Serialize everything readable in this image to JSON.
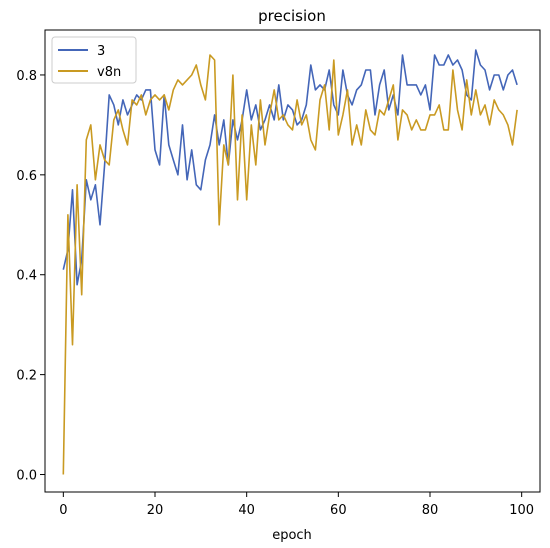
{
  "chart_data": {
    "type": "line",
    "title": "precision",
    "xlabel": "epoch",
    "ylabel": "",
    "xlim": [
      -4,
      104
    ],
    "ylim": [
      -0.035,
      0.89
    ],
    "xticks": [
      0,
      20,
      40,
      60,
      80,
      100
    ],
    "yticks": [
      0.0,
      0.2,
      0.4,
      0.6,
      0.8
    ],
    "xtick_labels": [
      "0",
      "20",
      "40",
      "60",
      "80",
      "100"
    ],
    "ytick_labels": [
      "0.0",
      "0.2",
      "0.4",
      "0.6",
      "0.8"
    ],
    "grid": false,
    "legend_position": "top-left",
    "series": [
      {
        "name": "3",
        "color": "#4466b8",
        "x": [
          0,
          1,
          2,
          3,
          4,
          5,
          6,
          7,
          8,
          9,
          10,
          11,
          12,
          13,
          14,
          15,
          16,
          17,
          18,
          19,
          20,
          21,
          22,
          23,
          24,
          25,
          26,
          27,
          28,
          29,
          30,
          31,
          32,
          33,
          34,
          35,
          36,
          37,
          38,
          39,
          40,
          41,
          42,
          43,
          44,
          45,
          46,
          47,
          48,
          49,
          50,
          51,
          52,
          53,
          54,
          55,
          56,
          57,
          58,
          59,
          60,
          61,
          62,
          63,
          64,
          65,
          66,
          67,
          68,
          69,
          70,
          71,
          72,
          73,
          74,
          75,
          76,
          77,
          78,
          79,
          80,
          81,
          82,
          83,
          84,
          85,
          86,
          87,
          88,
          89,
          90,
          91,
          92,
          93,
          94,
          95,
          96,
          97,
          98,
          99
        ],
        "values": [
          0.41,
          0.45,
          0.57,
          0.38,
          0.43,
          0.59,
          0.55,
          0.58,
          0.5,
          0.62,
          0.76,
          0.74,
          0.7,
          0.75,
          0.72,
          0.74,
          0.76,
          0.75,
          0.77,
          0.77,
          0.65,
          0.62,
          0.76,
          0.66,
          0.63,
          0.6,
          0.7,
          0.59,
          0.65,
          0.58,
          0.57,
          0.63,
          0.66,
          0.72,
          0.66,
          0.71,
          0.62,
          0.71,
          0.67,
          0.71,
          0.77,
          0.71,
          0.74,
          0.69,
          0.71,
          0.74,
          0.71,
          0.78,
          0.71,
          0.74,
          0.73,
          0.7,
          0.71,
          0.74,
          0.82,
          0.77,
          0.78,
          0.77,
          0.81,
          0.74,
          0.72,
          0.81,
          0.76,
          0.74,
          0.77,
          0.78,
          0.81,
          0.81,
          0.72,
          0.78,
          0.81,
          0.73,
          0.76,
          0.72,
          0.84,
          0.78,
          0.78,
          0.78,
          0.76,
          0.78,
          0.73,
          0.84,
          0.82,
          0.82,
          0.84,
          0.82,
          0.83,
          0.81,
          0.76,
          0.75,
          0.85,
          0.82,
          0.81,
          0.77,
          0.8,
          0.8,
          0.77,
          0.8,
          0.81,
          0.78
        ]
      },
      {
        "name": "v8n",
        "color": "#c99a22",
        "x": [
          0,
          1,
          2,
          3,
          4,
          5,
          6,
          7,
          8,
          9,
          10,
          11,
          12,
          13,
          14,
          15,
          16,
          17,
          18,
          19,
          20,
          21,
          22,
          23,
          24,
          25,
          26,
          27,
          28,
          29,
          30,
          31,
          32,
          33,
          34,
          35,
          36,
          37,
          38,
          39,
          40,
          41,
          42,
          43,
          44,
          45,
          46,
          47,
          48,
          49,
          50,
          51,
          52,
          53,
          54,
          55,
          56,
          57,
          58,
          59,
          60,
          61,
          62,
          63,
          64,
          65,
          66,
          67,
          68,
          69,
          70,
          71,
          72,
          73,
          74,
          75,
          76,
          77,
          78,
          79,
          80,
          81,
          82,
          83,
          84,
          85,
          86,
          87,
          88,
          89,
          90,
          91,
          92,
          93,
          94,
          95,
          96,
          97,
          98,
          99
        ],
        "values": [
          0.0,
          0.52,
          0.26,
          0.58,
          0.36,
          0.67,
          0.7,
          0.59,
          0.66,
          0.63,
          0.62,
          0.71,
          0.73,
          0.69,
          0.66,
          0.75,
          0.74,
          0.76,
          0.72,
          0.75,
          0.76,
          0.75,
          0.76,
          0.73,
          0.77,
          0.79,
          0.78,
          0.79,
          0.8,
          0.82,
          0.78,
          0.75,
          0.84,
          0.83,
          0.5,
          0.66,
          0.62,
          0.8,
          0.55,
          0.72,
          0.55,
          0.7,
          0.62,
          0.75,
          0.66,
          0.72,
          0.77,
          0.71,
          0.72,
          0.7,
          0.69,
          0.75,
          0.7,
          0.72,
          0.67,
          0.65,
          0.75,
          0.78,
          0.69,
          0.83,
          0.68,
          0.72,
          0.77,
          0.66,
          0.7,
          0.66,
          0.73,
          0.69,
          0.68,
          0.73,
          0.72,
          0.75,
          0.78,
          0.67,
          0.73,
          0.72,
          0.69,
          0.71,
          0.69,
          0.69,
          0.72,
          0.72,
          0.74,
          0.69,
          0.69,
          0.81,
          0.73,
          0.69,
          0.79,
          0.72,
          0.77,
          0.72,
          0.74,
          0.7,
          0.75,
          0.73,
          0.72,
          0.7,
          0.66,
          0.73
        ]
      }
    ]
  }
}
